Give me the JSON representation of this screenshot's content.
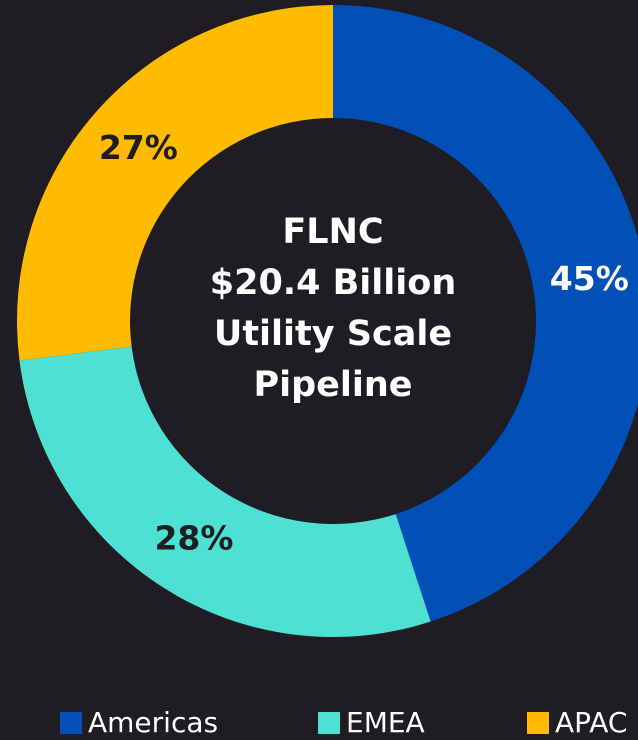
{
  "chart_data": {
    "type": "donut",
    "center_text": [
      "FLNC",
      "$20.4 Billion",
      "Utility Scale",
      "Pipeline"
    ],
    "categories": [
      "Americas",
      "EMEA",
      "APAC"
    ],
    "values": [
      45,
      28,
      27
    ],
    "value_labels": [
      "45%",
      "28%",
      "27%"
    ],
    "colors": [
      "#0050b8",
      "#4ee0d2",
      "#ffbb00"
    ],
    "label_colors": [
      "#ffffff",
      "#1f1d23",
      "#1f1d23"
    ],
    "legend": "bottom"
  }
}
